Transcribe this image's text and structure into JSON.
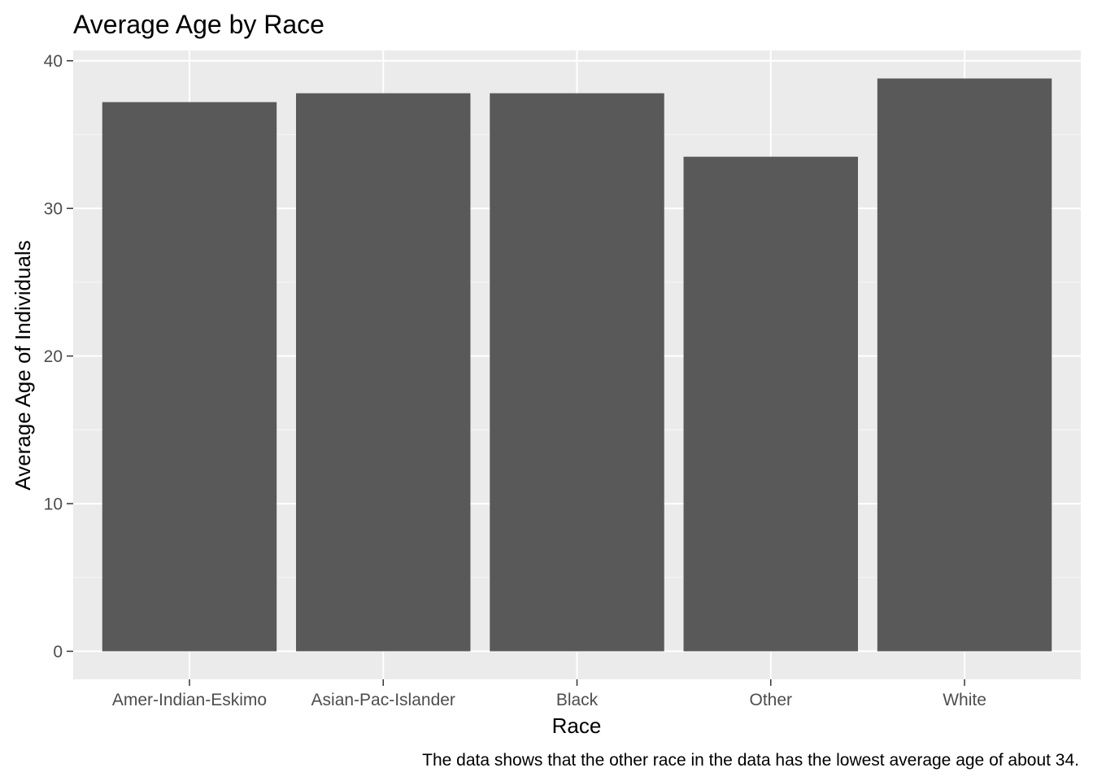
{
  "chart_data": {
    "type": "bar",
    "title": "Average Age by Race",
    "xlabel": "Race",
    "ylabel": "Average Age of Individuals",
    "caption": "The data shows that the other race in the data has the lowest average age of about 34.",
    "categories": [
      "Amer-Indian-Eskimo",
      "Asian-Pac-Islander",
      "Black",
      "Other",
      "White"
    ],
    "values": [
      37.2,
      37.8,
      37.8,
      33.5,
      38.8
    ],
    "yticks": [
      "0",
      "10",
      "20",
      "30",
      "40"
    ],
    "ylim": [
      -1.9,
      40.7
    ],
    "grid": true,
    "legend": "none",
    "colors": {
      "bar": "#595959",
      "panel": "#ebebeb",
      "grid_major": "#ffffff",
      "grid_minor": "#f5f5f5",
      "tick": "#333333"
    }
  }
}
